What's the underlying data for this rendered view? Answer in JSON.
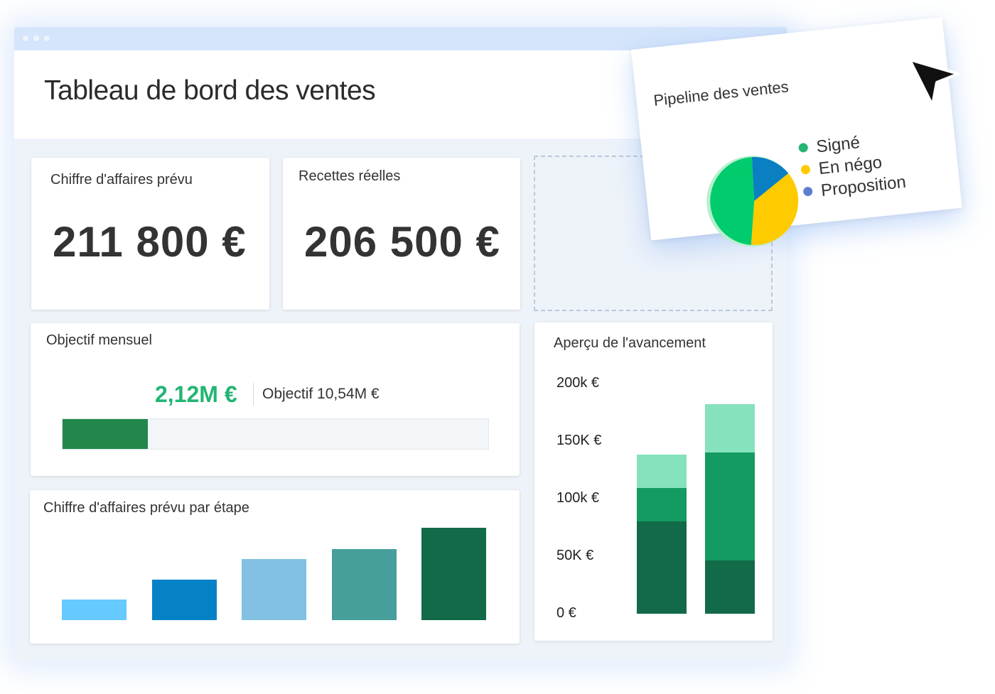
{
  "header": {
    "title": "Tableau de bord des ventes"
  },
  "cards": {
    "forecast": {
      "label": "Chiffre d'affaires prévu",
      "value": "211 800 €"
    },
    "actual": {
      "label": "Recettes réelles",
      "value": "206 500 €"
    }
  },
  "goal": {
    "label": "Objectif mensuel",
    "current": "2,12M €",
    "target": "Objectif 10,54M €",
    "progress_fraction": 0.2
  },
  "stage_chart": {
    "title": "Chiffre d'affaires prévu par étape",
    "chart_data": {
      "type": "bar",
      "categories": [
        "",
        "",
        "",
        "",
        ""
      ],
      "values": [
        0.22,
        0.44,
        0.66,
        0.77,
        1.0
      ],
      "colors": [
        "#66c9ff",
        "#0582c5",
        "#82c1e2",
        "#479f9c",
        "#126a48"
      ]
    }
  },
  "progress_chart": {
    "title": "Aperçu de l'avancement",
    "chart_data": {
      "type": "bar",
      "stacked": true,
      "y_ticks": [
        "0 €",
        "50K €",
        "100k €",
        "150K €",
        "200k €"
      ],
      "ylim": [
        0,
        200000
      ],
      "bars": [
        {
          "segments": [
            80000,
            29000,
            29000
          ]
        },
        {
          "segments": [
            46000,
            94000,
            42000
          ]
        }
      ],
      "segment_colors": [
        "#136a48",
        "#139b62",
        "#85e2bc"
      ]
    }
  },
  "pipeline": {
    "title": "Pipeline des ventes",
    "chart_data": {
      "type": "pie",
      "slices": [
        {
          "name": "Signé",
          "value": 48,
          "color": "#00cc6e"
        },
        {
          "name": "En négo",
          "value": 37,
          "color": "#fecb00"
        },
        {
          "name": "Proposition",
          "value": 15,
          "color": "#0a7fc2"
        }
      ],
      "legend": [
        {
          "label": "Signé",
          "color": "#22b573"
        },
        {
          "label": "En négo",
          "color": "#fecb00"
        },
        {
          "label": "Proposition",
          "color": "#5a7fcf"
        }
      ]
    }
  },
  "icons": {
    "cursor": "arrow-cursor-icon"
  }
}
